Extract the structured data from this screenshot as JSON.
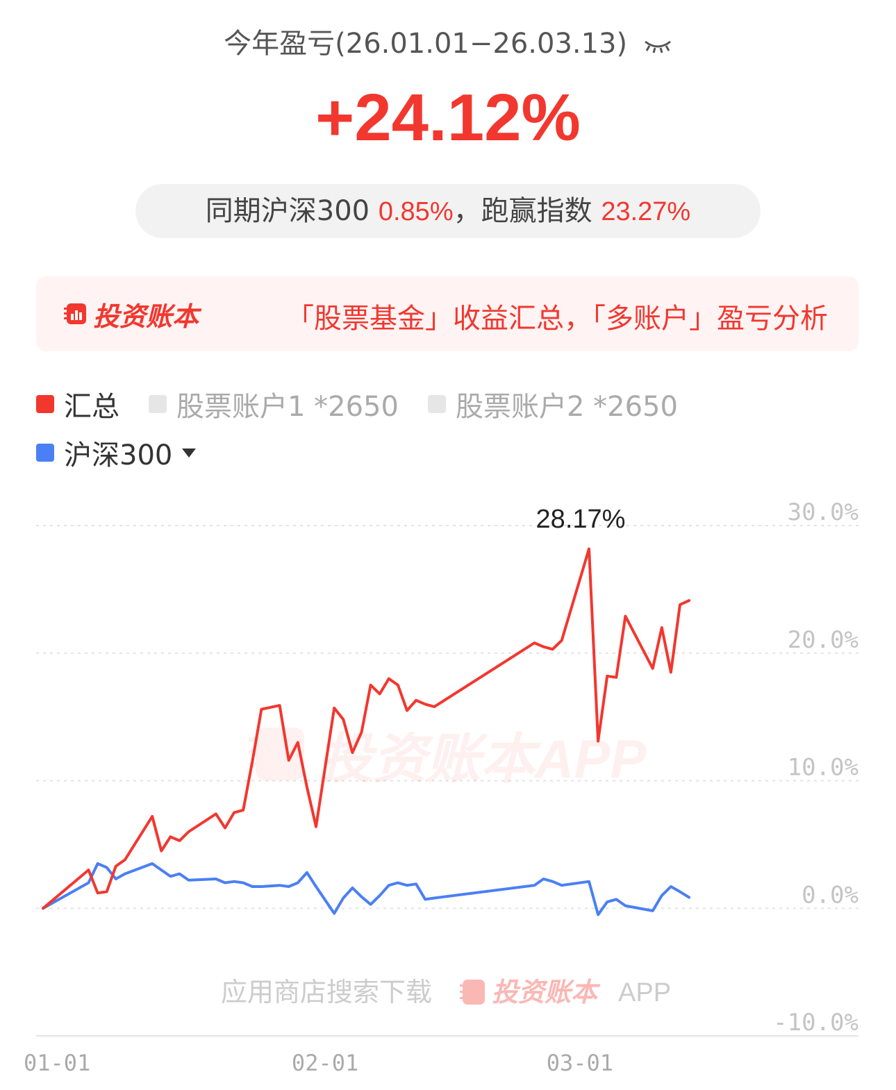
{
  "header": {
    "title": "今年盈亏(26.01.01−26.03.13)",
    "eye_icon": "eye-closed-icon",
    "value": "+24.12%"
  },
  "compare": {
    "prefix": "同期沪深300",
    "index_return": "0.85%",
    "middle": "，跑赢指数",
    "beat_value": "23.27%"
  },
  "banner": {
    "logo_text": "投资账本",
    "text": "「股票基金」收益汇总，「多账户」盈亏分析"
  },
  "legend": {
    "items": [
      {
        "label": "汇总",
        "color": "#f2372f",
        "active": true
      },
      {
        "label": "股票账户1 *2650",
        "color": "#e6e6e6",
        "active": false
      },
      {
        "label": "股票账户2 *2650",
        "color": "#e6e6e6",
        "active": false
      }
    ],
    "index": {
      "label": "沪深300",
      "color": "#4a7ff5"
    }
  },
  "watermark": {
    "big": "投资账本APP",
    "small_prefix": "应用商店搜索下载",
    "small_logo": "投资账本",
    "small_suffix": "APP"
  },
  "chart_data": {
    "type": "line",
    "y_unit": "%",
    "ylim": [
      -10,
      30
    ],
    "y_ticks": [
      "30.0%",
      "20.0%",
      "10.0%",
      "0.0%",
      "-10.0%"
    ],
    "x_ticks": [
      "01-01",
      "02-01",
      "03-01"
    ],
    "peak_label": "28.17%",
    "grid": true,
    "series": [
      {
        "name": "汇总",
        "color": "#f2372f",
        "x": [
          "01-01",
          "01-06",
          "01-07",
          "01-08",
          "01-09",
          "01-10",
          "01-13",
          "01-14",
          "01-15",
          "01-16",
          "01-17",
          "01-20",
          "01-21",
          "01-22",
          "01-23",
          "01-24",
          "01-25",
          "01-27",
          "01-28",
          "01-29",
          "01-30",
          "01-31",
          "02-02",
          "02-03",
          "02-04",
          "02-05",
          "02-06",
          "02-07",
          "02-08",
          "02-09",
          "02-10",
          "02-11",
          "02-12",
          "02-13",
          "02-24",
          "02-25",
          "02-26",
          "02-27",
          "03-02",
          "03-03",
          "03-04",
          "03-05",
          "03-06",
          "03-09",
          "03-10",
          "03-11",
          "03-12",
          "03-13"
        ],
        "y": [
          0,
          3.0,
          1.2,
          1.3,
          3.3,
          3.8,
          7.2,
          4.5,
          5.6,
          5.3,
          6.0,
          7.4,
          6.3,
          7.5,
          7.7,
          11.5,
          15.6,
          15.9,
          11.6,
          13.0,
          9.5,
          6.4,
          15.7,
          14.8,
          12.2,
          13.8,
          17.5,
          16.8,
          18.0,
          17.5,
          15.5,
          16.3,
          16.0,
          15.8,
          20.8,
          20.5,
          20.3,
          21.0,
          28.17,
          13.1,
          18.2,
          18.1,
          22.9,
          18.8,
          22.0,
          18.5,
          23.8,
          24.12
        ]
      },
      {
        "name": "沪深300",
        "color": "#4a7ff5",
        "x": [
          "01-01",
          "01-06",
          "01-07",
          "01-08",
          "01-09",
          "01-10",
          "01-13",
          "01-14",
          "01-15",
          "01-16",
          "01-17",
          "01-20",
          "01-21",
          "01-22",
          "01-23",
          "01-24",
          "01-25",
          "01-27",
          "01-28",
          "01-29",
          "01-30",
          "01-31",
          "02-02",
          "02-03",
          "02-04",
          "02-05",
          "02-06",
          "02-07",
          "02-08",
          "02-09",
          "02-10",
          "02-11",
          "02-12",
          "02-13",
          "02-24",
          "02-25",
          "02-26",
          "02-27",
          "03-02",
          "03-03",
          "03-04",
          "03-05",
          "03-06",
          "03-09",
          "03-10",
          "03-11",
          "03-12",
          "03-13"
        ],
        "y": [
          0,
          2.0,
          3.5,
          3.2,
          2.3,
          2.7,
          3.5,
          3.0,
          2.5,
          2.7,
          2.2,
          2.3,
          2.0,
          2.1,
          2.0,
          1.7,
          1.7,
          1.8,
          1.7,
          2.0,
          2.8,
          1.7,
          -0.4,
          0.8,
          1.6,
          0.9,
          0.3,
          1.0,
          1.8,
          2.0,
          1.8,
          1.9,
          0.7,
          0.8,
          1.8,
          2.3,
          2.1,
          1.8,
          2.1,
          -0.5,
          0.5,
          0.7,
          0.2,
          -0.2,
          1.0,
          1.7,
          1.3,
          0.85
        ]
      }
    ]
  }
}
